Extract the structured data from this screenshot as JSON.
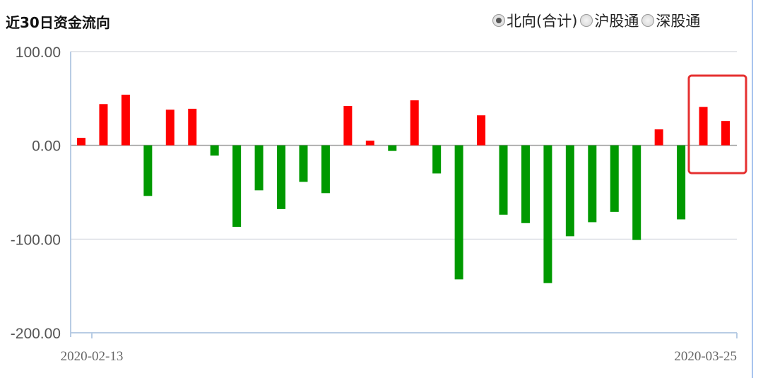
{
  "header": {
    "title": "近30日资金流向",
    "options": [
      {
        "label": "北向(合计)",
        "selected": true
      },
      {
        "label": "沪股通",
        "selected": false
      },
      {
        "label": "深股通",
        "selected": false
      }
    ]
  },
  "chart_data": {
    "type": "bar",
    "title": "近30日资金流向",
    "ylim": [
      -200,
      100
    ],
    "yticks": [
      "100.00",
      "0.00",
      "-100.00",
      "-200.00"
    ],
    "ytick_values": [
      100,
      0,
      -100,
      -200
    ],
    "xtick_labels": [
      "2020-02-13",
      "2020-03-25"
    ],
    "values": [
      8,
      44,
      54,
      -54,
      38,
      39,
      -11,
      -87,
      -48,
      -68,
      -39,
      -51,
      42,
      5,
      -6,
      48,
      -30,
      -143,
      32,
      -74,
      -83,
      -147,
      -97,
      -82,
      -71,
      -101,
      17,
      -79,
      41,
      26
    ],
    "colors": {
      "positive": "#ff0000",
      "negative": "#009900",
      "highlight_box": "#e53030",
      "grid": "#c8cdd6",
      "axis": "#b8cce4"
    },
    "highlight": "last two bars boxed in red",
    "grid": true
  }
}
